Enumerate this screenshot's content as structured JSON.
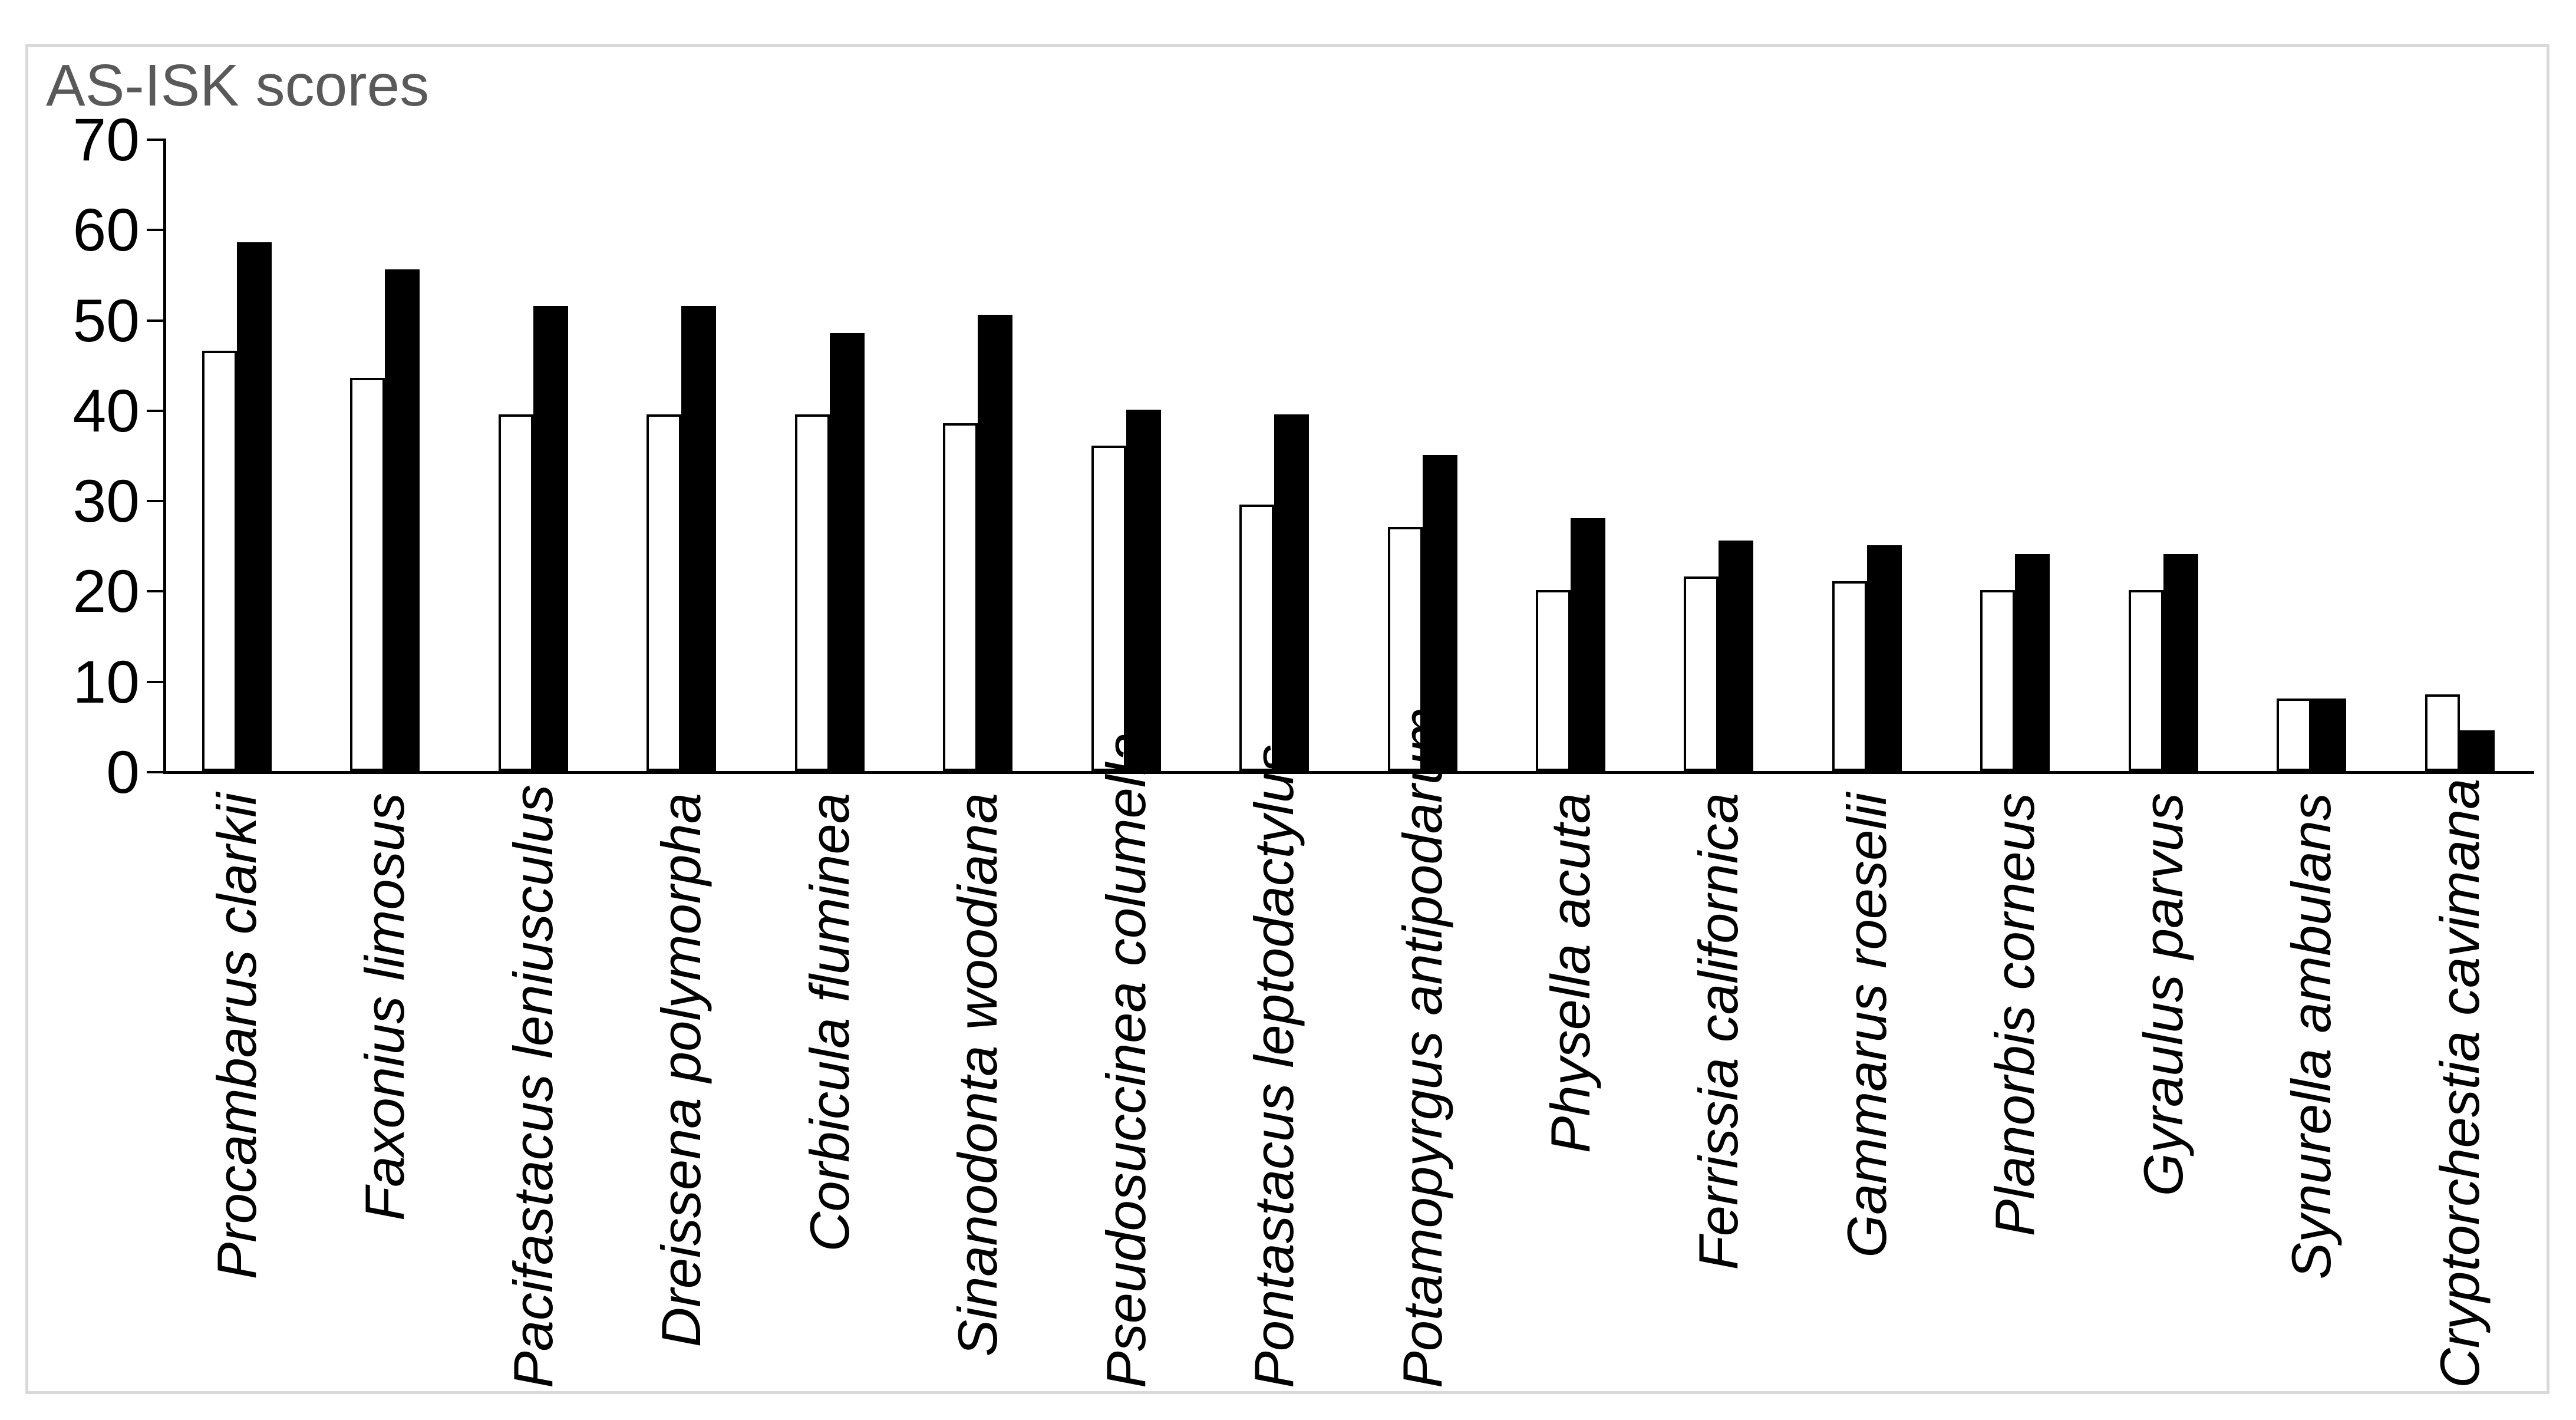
{
  "chart_data": {
    "type": "bar",
    "title": "AS-ISK scores",
    "title_color": "#595959",
    "categories": [
      "Procambarus clarkii",
      "Faxonius limosus",
      "Pacifastacus leniusculus",
      "Dreissena polymorpha",
      "Corbicula fluminea",
      "Sinanodonta woodiana",
      "Pseudosuccinea columella",
      "Pontastacus leptodactylus",
      "Potamopyrgus antipodarum",
      "Physella acuta",
      "Ferrissia californica",
      "Gammarus roeselii",
      "Planorbis corneus",
      "Gyraulus parvus",
      "Synurella ambulans",
      "Cryptorchestia cavimana"
    ],
    "series": [
      {
        "name": "white-outlined-bars",
        "fill": "#ffffff",
        "stroke": "#000000",
        "values": [
          46.5,
          43.5,
          39.5,
          39.5,
          39.5,
          38.5,
          36,
          29.5,
          27,
          20,
          21.5,
          21,
          20,
          20,
          8,
          8.5
        ]
      },
      {
        "name": "black-filled-bars",
        "fill": "#000000",
        "stroke": "#000000",
        "values": [
          58.5,
          55.5,
          51.5,
          51.5,
          48.5,
          50.5,
          40,
          39.5,
          35,
          28,
          25.5,
          25,
          24,
          24,
          8,
          4.5
        ]
      }
    ],
    "xlabel": "",
    "ylabel": "",
    "ylim": [
      0,
      70
    ],
    "yticks": [
      "0",
      "10",
      "20",
      "30",
      "40",
      "50",
      "60",
      "70"
    ],
    "grid": false,
    "legend": "none",
    "category_style": "italic, rotated 90deg",
    "axis_color": "#000000",
    "border_color": "#d9d9d9"
  }
}
